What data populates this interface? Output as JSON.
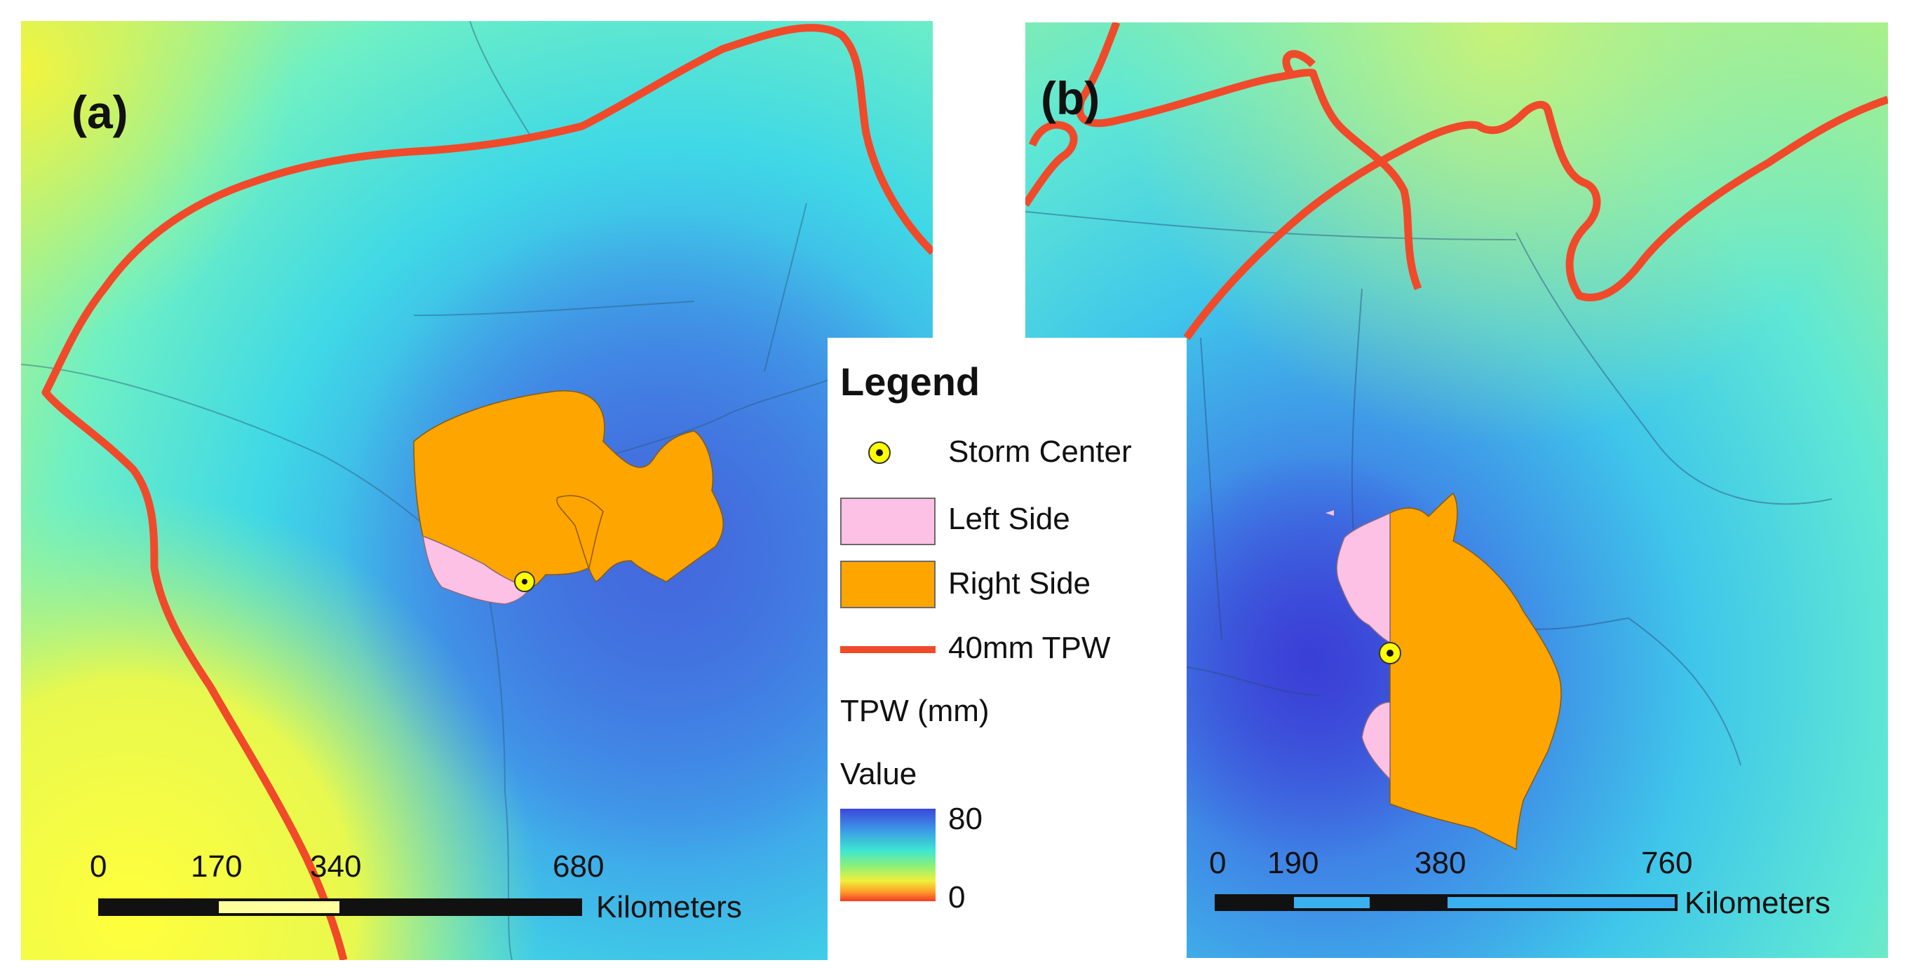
{
  "panels": [
    {
      "label": "(a)",
      "scale_ticks": [
        "0",
        "170",
        "340",
        "680"
      ],
      "scale_unit": "Kilometers"
    },
    {
      "label": "(b)",
      "scale_ticks": [
        "0",
        "190",
        "380",
        "760"
      ],
      "scale_unit": "Kilometers"
    }
  ],
  "legend": {
    "title": "Legend",
    "items": [
      {
        "label": "Storm Center",
        "symbol": "point",
        "color": "#ffff00"
      },
      {
        "label": "Left Side",
        "symbol": "fill",
        "color": "#fcc1e4"
      },
      {
        "label": "Right Side",
        "symbol": "fill",
        "color": "#ffa500"
      },
      {
        "label": "40mm TPW",
        "symbol": "line",
        "color": "#f04a2a"
      }
    ],
    "raster_title": "TPW (mm)",
    "raster_subtitle": "Value",
    "ramp_max": "80",
    "ramp_min": "0"
  },
  "colors": {
    "low_tpw": "#ffff4a",
    "mid_tpw": "#3cf0d2",
    "high_tpw": "#3c50dc",
    "contour": "#f04a2a"
  }
}
